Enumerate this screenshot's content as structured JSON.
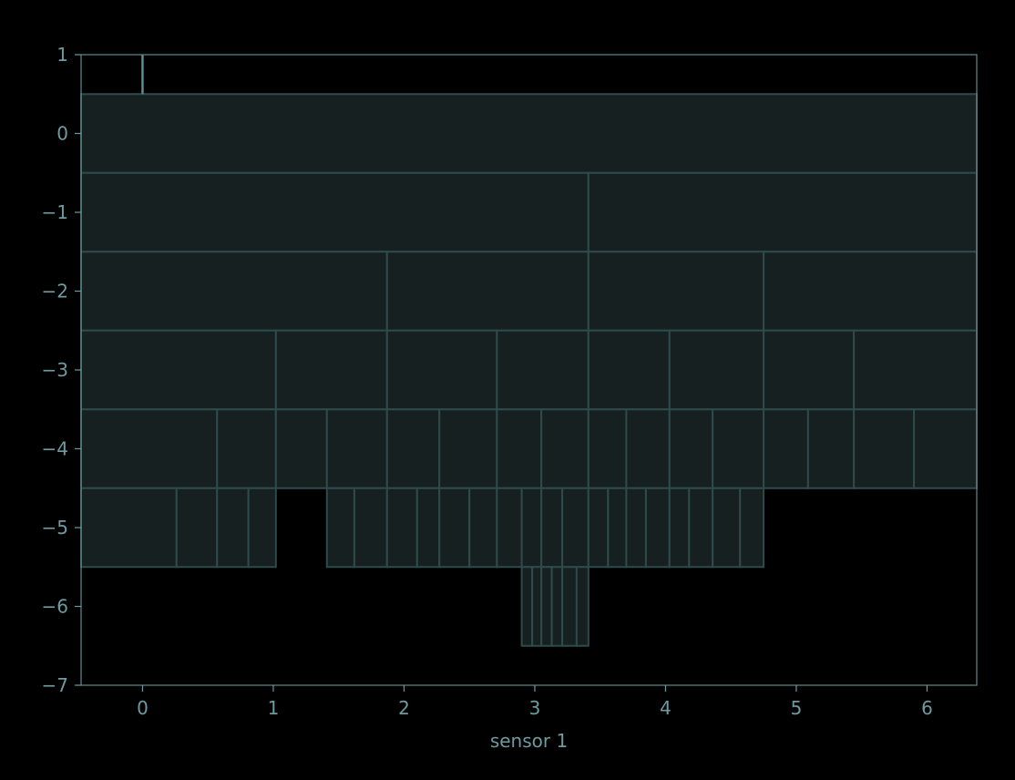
{
  "chart_data": {
    "type": "icicle",
    "xlabel": "sensor 1",
    "ylabel": "",
    "title": "",
    "xlim": [
      -0.47,
      6.38
    ],
    "ylim": [
      -7,
      1
    ],
    "xticks": [
      0,
      1,
      2,
      3,
      4,
      5,
      6
    ],
    "yticks": [
      1,
      0,
      -1,
      -2,
      -3,
      -4,
      -5,
      -6,
      -7
    ],
    "xtick_labels": [
      "0",
      "1",
      "2",
      "3",
      "4",
      "5",
      "6"
    ],
    "ytick_labels": [
      "1",
      "0",
      "−1",
      "−2",
      "−3",
      "−4",
      "−5",
      "−6",
      "−7"
    ],
    "grid": false,
    "colors": {
      "background": "#000000",
      "cell_fill": "#172020",
      "cell_edge": "#2f4a4a",
      "text": "#6f9aa0",
      "frame": "#5f8a90"
    },
    "root_stem": {
      "x": 0,
      "y": [
        0.5,
        1
      ]
    },
    "levels": [
      {
        "depth": 0,
        "x_range": [
          -0.47,
          6.38
        ],
        "splits": []
      },
      {
        "depth": -1,
        "x_range": [
          -0.47,
          6.38
        ],
        "splits": [
          3.41
        ]
      },
      {
        "depth": -2,
        "x_range": [
          -0.47,
          6.38
        ],
        "splits": [
          1.87,
          3.41,
          4.75
        ]
      },
      {
        "depth": -3,
        "x_range": [
          -0.47,
          6.38
        ],
        "splits": [
          1.02,
          1.87,
          2.71,
          3.41,
          4.03,
          4.75,
          5.44
        ]
      },
      {
        "depth": -4,
        "x_range": [
          -0.47,
          6.38
        ],
        "splits": [
          0.57,
          1.02,
          1.41,
          1.87,
          2.27,
          2.71,
          3.05,
          3.41,
          3.7,
          4.03,
          4.36,
          4.75,
          5.09,
          5.44,
          5.9
        ]
      },
      {
        "depth": -5,
        "x_range": [
          -0.47,
          1.02
        ],
        "splits": [
          0.26,
          0.57,
          0.81
        ]
      },
      {
        "depth": -5,
        "x_range": [
          1.41,
          4.75
        ],
        "splits": [
          1.62,
          1.87,
          2.1,
          2.27,
          2.5,
          2.71,
          2.9,
          3.05,
          3.21,
          3.41,
          3.56,
          3.7,
          3.85,
          4.03,
          4.18,
          4.36,
          4.57
        ]
      },
      {
        "depth": -6,
        "x_range": [
          2.9,
          3.41
        ],
        "splits": [
          2.98,
          3.05,
          3.13,
          3.21,
          3.32
        ]
      }
    ]
  }
}
